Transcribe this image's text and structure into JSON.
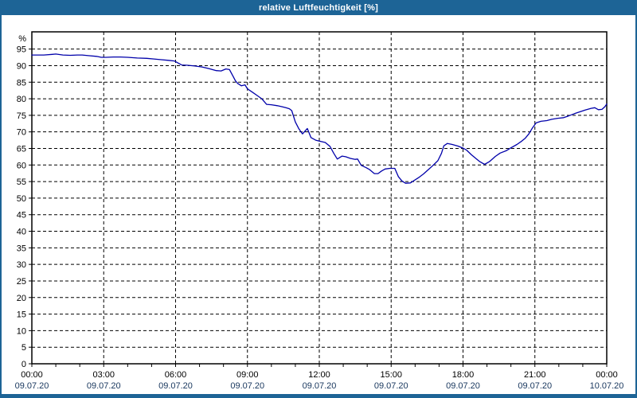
{
  "window": {
    "title": "relative Luftfeuchtigkeit [%]",
    "title_bar_color": "#1d6496",
    "border_color": "#1d6496",
    "background": "#ffffff"
  },
  "chart_data": {
    "type": "line",
    "title": "relative Luftfeuchtigkeit [%]",
    "ylabel": "%",
    "xlabel": "",
    "ylim": [
      0,
      100
    ],
    "grid": "dashed-black",
    "legend": "none",
    "line_color": "#0000aa",
    "grid_color": "#000000",
    "time_label_color": "#000000",
    "date_label_color": "#17365d",
    "y_ticks": [
      0,
      5,
      10,
      15,
      20,
      25,
      30,
      35,
      40,
      45,
      50,
      55,
      60,
      65,
      70,
      75,
      80,
      85,
      90,
      95
    ],
    "x_ticks": [
      {
        "hour": 0,
        "time": "00:00",
        "date": "09.07.20"
      },
      {
        "hour": 3,
        "time": "03:00",
        "date": "09.07.20"
      },
      {
        "hour": 6,
        "time": "06:00",
        "date": "09.07.20"
      },
      {
        "hour": 9,
        "time": "09:00",
        "date": "09.07.20"
      },
      {
        "hour": 12,
        "time": "12:00",
        "date": "09.07.20"
      },
      {
        "hour": 15,
        "time": "15:00",
        "date": "09.07.20"
      },
      {
        "hour": 18,
        "time": "18:00",
        "date": "09.07.20"
      },
      {
        "hour": 21,
        "time": "21:00",
        "date": "09.07.20"
      },
      {
        "hour": 24,
        "time": "00:00",
        "date": "10.07.20"
      }
    ],
    "x_minor_tick_every_hours": 1,
    "series": [
      {
        "name": "relative Luftfeuchtigkeit [%]",
        "points": [
          [
            0,
            93.2
          ],
          [
            0.5,
            93.2
          ],
          [
            0.85,
            93.4
          ],
          [
            1,
            93.5
          ],
          [
            1.3,
            93.2
          ],
          [
            1.6,
            93.1
          ],
          [
            1.9,
            93.2
          ],
          [
            2.1,
            93.2
          ],
          [
            2.4,
            93
          ],
          [
            2.7,
            92.8
          ],
          [
            2.9,
            92.5
          ],
          [
            3.1,
            92.5
          ],
          [
            3.4,
            92.6
          ],
          [
            3.7,
            92.6
          ],
          [
            4,
            92.5
          ],
          [
            4.4,
            92.3
          ],
          [
            4.8,
            92.2
          ],
          [
            5.1,
            92
          ],
          [
            5.4,
            91.8
          ],
          [
            5.7,
            91.6
          ],
          [
            5.95,
            91.4
          ],
          [
            6.1,
            90.8
          ],
          [
            6.25,
            90.2
          ],
          [
            6.5,
            90.1
          ],
          [
            6.8,
            89.9
          ],
          [
            7.1,
            89.6
          ],
          [
            7.4,
            89.1
          ],
          [
            7.7,
            88.5
          ],
          [
            7.9,
            88.4
          ],
          [
            8.1,
            89
          ],
          [
            8.25,
            88.8
          ],
          [
            8.4,
            86.8
          ],
          [
            8.5,
            85.4
          ],
          [
            8.6,
            84.6
          ],
          [
            8.75,
            83.9
          ],
          [
            8.9,
            84.2
          ],
          [
            9,
            83
          ],
          [
            9.2,
            82
          ],
          [
            9.4,
            81
          ],
          [
            9.6,
            80
          ],
          [
            9.8,
            78.3
          ],
          [
            10,
            78.2
          ],
          [
            10.25,
            77.9
          ],
          [
            10.45,
            77.6
          ],
          [
            10.6,
            77.3
          ],
          [
            10.75,
            77
          ],
          [
            10.85,
            76.4
          ],
          [
            11,
            73
          ],
          [
            11.15,
            70.9
          ],
          [
            11.3,
            69.4
          ],
          [
            11.5,
            71
          ],
          [
            11.65,
            68.3
          ],
          [
            11.85,
            67.5
          ],
          [
            12,
            67.2
          ],
          [
            12.25,
            66.8
          ],
          [
            12.45,
            65.6
          ],
          [
            12.6,
            63.6
          ],
          [
            12.75,
            61.8
          ],
          [
            12.95,
            62.7
          ],
          [
            13.1,
            62.5
          ],
          [
            13.3,
            62
          ],
          [
            13.5,
            61.7
          ],
          [
            13.6,
            61.8
          ],
          [
            13.75,
            59.9
          ],
          [
            13.95,
            59.2
          ],
          [
            14.1,
            58.6
          ],
          [
            14.3,
            57.4
          ],
          [
            14.45,
            57.4
          ],
          [
            14.6,
            58.2
          ],
          [
            14.75,
            58.8
          ],
          [
            14.95,
            59
          ],
          [
            15.15,
            59
          ],
          [
            15.3,
            56.5
          ],
          [
            15.45,
            55.2
          ],
          [
            15.6,
            54.5
          ],
          [
            15.8,
            54.6
          ],
          [
            15.95,
            55.3
          ],
          [
            16.15,
            56.2
          ],
          [
            16.35,
            57.3
          ],
          [
            16.55,
            58.6
          ],
          [
            16.75,
            59.9
          ],
          [
            16.95,
            61.3
          ],
          [
            17.1,
            63.5
          ],
          [
            17.2,
            65.8
          ],
          [
            17.35,
            66.5
          ],
          [
            17.55,
            66.2
          ],
          [
            17.8,
            65.7
          ],
          [
            18,
            65.1
          ],
          [
            18.15,
            64.5
          ],
          [
            18.35,
            63.1
          ],
          [
            18.55,
            61.9
          ],
          [
            18.7,
            61
          ],
          [
            18.9,
            60.2
          ],
          [
            19.1,
            61
          ],
          [
            19.35,
            62.6
          ],
          [
            19.55,
            63.6
          ],
          [
            19.8,
            64.3
          ],
          [
            20,
            65.2
          ],
          [
            20.25,
            66.2
          ],
          [
            20.45,
            67.2
          ],
          [
            20.6,
            68.1
          ],
          [
            20.75,
            69.4
          ],
          [
            20.9,
            71.2
          ],
          [
            21.05,
            72.7
          ],
          [
            21.25,
            73.2
          ],
          [
            21.5,
            73.4
          ],
          [
            21.7,
            73.8
          ],
          [
            21.95,
            74.1
          ],
          [
            22.2,
            74.3
          ],
          [
            22.4,
            74.8
          ],
          [
            22.65,
            75.5
          ],
          [
            22.9,
            76.1
          ],
          [
            23.1,
            76.6
          ],
          [
            23.35,
            77.1
          ],
          [
            23.5,
            77.3
          ],
          [
            23.65,
            76.7
          ],
          [
            23.8,
            76.8
          ],
          [
            23.92,
            77.6
          ],
          [
            24,
            78.4
          ]
        ]
      }
    ]
  }
}
